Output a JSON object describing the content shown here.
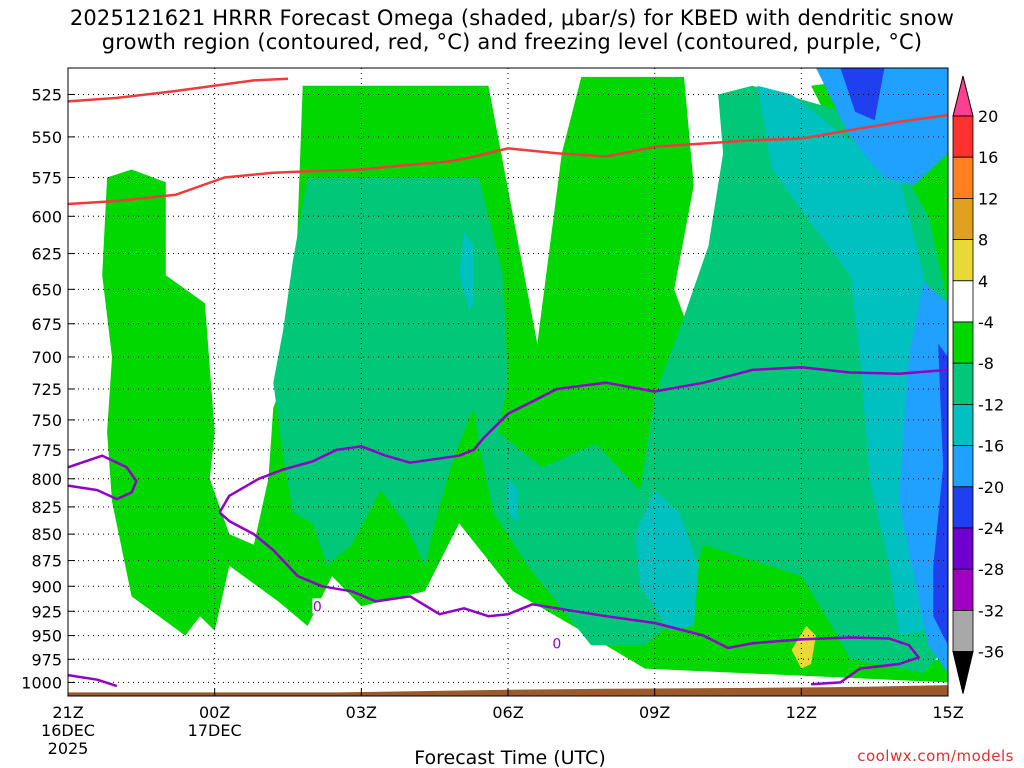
{
  "title": {
    "line1": "2025121621 HRRR Forecast Omega (shaded, μbar/s) for KBED with dendritic snow",
    "line2": "growth region (contoured, red, °C) and freezing level (contoured, purple, °C)"
  },
  "credit": "coolwx.com/models",
  "chart_data": {
    "type": "heatmap",
    "xlabel": "Forecast Time (UTC)",
    "x_ticks": [
      {
        "label": "21Z",
        "sub": [
          "16DEC",
          "2025"
        ],
        "hour": 0
      },
      {
        "label": "00Z",
        "sub": [
          "17DEC"
        ],
        "hour": 3
      },
      {
        "label": "03Z",
        "sub": [],
        "hour": 6
      },
      {
        "label": "06Z",
        "sub": [],
        "hour": 9
      },
      {
        "label": "09Z",
        "sub": [],
        "hour": 12
      },
      {
        "label": "12Z",
        "sub": [],
        "hour": 15
      },
      {
        "label": "15Z",
        "sub": [],
        "hour": 18
      }
    ],
    "xlim": [
      0,
      18
    ],
    "ylabel": "",
    "y_ticks": [
      525,
      550,
      575,
      600,
      625,
      650,
      675,
      700,
      725,
      750,
      775,
      800,
      825,
      850,
      875,
      900,
      925,
      950,
      975,
      1000
    ],
    "ylim_hpa": [
      510,
      1015
    ],
    "y_scale": "log-pressure",
    "grid": true,
    "colorbar": {
      "labels": [
        "20",
        "16",
        "12",
        "8",
        "4",
        "-4",
        "-8",
        "-12",
        "-16",
        "-20",
        "-24",
        "-28",
        "-32",
        "-36"
      ],
      "colors": [
        "#ff4090",
        "#ff3030",
        "#ff8020",
        "#e0a020",
        "#e8d838",
        "#ffffff",
        "#00d800",
        "#00c878",
        "#00c0c0",
        "#20a0ff",
        "#2040f0",
        "#7000d0",
        "#a000c0",
        "#a8a8a8",
        "#000000"
      ]
    },
    "omega_regions": [
      {
        "level": "-4 to -8",
        "color": "#00d800",
        "time_hpa": [
          [
            0.8,
            575
          ],
          [
            1.3,
            570
          ],
          [
            2.0,
            578
          ],
          [
            2.0,
            640
          ],
          [
            2.8,
            660
          ],
          [
            3.0,
            760
          ],
          [
            2.9,
            800
          ],
          [
            3.3,
            850
          ],
          [
            3.8,
            860
          ],
          [
            4.1,
            800
          ],
          [
            4.2,
            740
          ],
          [
            4.6,
            700
          ],
          [
            4.8,
            520
          ],
          [
            8.6,
            520
          ],
          [
            9.6,
            690
          ],
          [
            10.1,
            560
          ],
          [
            10.5,
            515
          ],
          [
            12.6,
            515
          ],
          [
            12.8,
            580
          ],
          [
            12.4,
            650
          ],
          [
            12.9,
            700
          ],
          [
            13.3,
            760
          ],
          [
            13.6,
            790
          ],
          [
            14.8,
            830
          ],
          [
            15.1,
            880
          ],
          [
            15.9,
            960
          ],
          [
            16.4,
            950
          ],
          [
            17.0,
            980
          ],
          [
            17.9,
            975
          ],
          [
            17.9,
            900
          ],
          [
            17.3,
            790
          ],
          [
            16.8,
            700
          ],
          [
            16.5,
            620
          ],
          [
            15.9,
            560
          ],
          [
            15.2,
            520
          ],
          [
            18.0,
            510
          ],
          [
            18.0,
            1000
          ],
          [
            11.8,
            985
          ],
          [
            10.5,
            945
          ],
          [
            9.1,
            905
          ],
          [
            8.0,
            840
          ],
          [
            7.3,
            905
          ],
          [
            6.0,
            920
          ],
          [
            5.4,
            890
          ],
          [
            4.9,
            940
          ],
          [
            4.3,
            915
          ],
          [
            3.3,
            880
          ],
          [
            3.0,
            945
          ],
          [
            2.7,
            930
          ],
          [
            2.4,
            950
          ],
          [
            1.3,
            910
          ],
          [
            0.9,
            820
          ],
          [
            0.8,
            760
          ],
          [
            0.9,
            700
          ],
          [
            0.7,
            640
          ]
        ]
      },
      {
        "level": "-8 to -12",
        "color": "#00c878",
        "time_hpa": [
          [
            4.9,
            575
          ],
          [
            8.4,
            575
          ],
          [
            8.9,
            640
          ],
          [
            9.0,
            720
          ],
          [
            8.8,
            760
          ],
          [
            9.7,
            790
          ],
          [
            10.8,
            770
          ],
          [
            11.7,
            810
          ],
          [
            12.0,
            730
          ],
          [
            12.5,
            680
          ],
          [
            13.1,
            620
          ],
          [
            13.4,
            560
          ],
          [
            13.3,
            525
          ],
          [
            14.0,
            520
          ],
          [
            16.5,
            540
          ],
          [
            17.6,
            600
          ],
          [
            18.0,
            660
          ],
          [
            18.0,
            960
          ],
          [
            17.5,
            990
          ],
          [
            16.0,
            975
          ],
          [
            15.5,
            930
          ],
          [
            15.0,
            890
          ],
          [
            13.0,
            860
          ],
          [
            12.5,
            930
          ],
          [
            11.8,
            960
          ],
          [
            10.7,
            960
          ],
          [
            9.9,
            910
          ],
          [
            9.4,
            880
          ],
          [
            8.7,
            830
          ],
          [
            8.4,
            770
          ],
          [
            8.3,
            740
          ],
          [
            7.9,
            780
          ],
          [
            7.5,
            840
          ],
          [
            7.3,
            880
          ],
          [
            6.9,
            840
          ],
          [
            6.4,
            810
          ],
          [
            5.8,
            860
          ],
          [
            5.3,
            880
          ],
          [
            5.0,
            840
          ],
          [
            4.6,
            830
          ],
          [
            4.4,
            780
          ],
          [
            4.2,
            720
          ],
          [
            4.4,
            680
          ],
          [
            4.6,
            630
          ]
        ]
      },
      {
        "level": "-12 to -16",
        "color": "#00c0c0",
        "time_hpa": [
          [
            14.1,
            520
          ],
          [
            14.8,
            525
          ],
          [
            15.9,
            550
          ],
          [
            17.0,
            575
          ],
          [
            17.5,
            640
          ],
          [
            17.9,
            720
          ],
          [
            17.9,
            940
          ],
          [
            17.0,
            950
          ],
          [
            16.8,
            880
          ],
          [
            16.4,
            800
          ],
          [
            16.2,
            700
          ],
          [
            16.0,
            640
          ],
          [
            15.1,
            600
          ],
          [
            14.4,
            570
          ]
        ]
      },
      {
        "level": "-12 to -16",
        "color": "#00c0c0",
        "time_hpa": [
          [
            8.1,
            610
          ],
          [
            8.3,
            620
          ],
          [
            8.3,
            660
          ],
          [
            8.2,
            665
          ],
          [
            8.0,
            640
          ]
        ]
      },
      {
        "level": "-12 to -16",
        "color": "#00c0c0",
        "time_hpa": [
          [
            12.0,
            810
          ],
          [
            12.5,
            830
          ],
          [
            12.9,
            880
          ],
          [
            12.8,
            940
          ],
          [
            12.3,
            945
          ],
          [
            11.7,
            900
          ],
          [
            11.6,
            850
          ]
        ]
      },
      {
        "level": "-12 to -16",
        "color": "#00c0c0",
        "time_hpa": [
          [
            9.0,
            800
          ],
          [
            9.2,
            810
          ],
          [
            9.2,
            840
          ],
          [
            9.0,
            830
          ]
        ]
      },
      {
        "level": "-16 to -20",
        "color": "#20a0ff",
        "time_hpa": [
          [
            15.3,
            510
          ],
          [
            18.0,
            510
          ],
          [
            18.0,
            560
          ],
          [
            17.3,
            580
          ],
          [
            16.7,
            575
          ],
          [
            16.0,
            550
          ]
        ]
      },
      {
        "level": "-16 to -20",
        "color": "#20a0ff",
        "time_hpa": [
          [
            17.5,
            645
          ],
          [
            18.0,
            660
          ],
          [
            18.0,
            990
          ],
          [
            17.6,
            960
          ],
          [
            17.0,
            820
          ],
          [
            17.2,
            700
          ]
        ]
      },
      {
        "level": "-20 to -24",
        "color": "#2040f0",
        "time_hpa": [
          [
            15.8,
            510
          ],
          [
            16.7,
            510
          ],
          [
            16.5,
            540
          ],
          [
            16.1,
            535
          ]
        ]
      },
      {
        "level": "-20 to -24",
        "color": "#2040f0",
        "time_hpa": [
          [
            17.8,
            690
          ],
          [
            18.0,
            700
          ],
          [
            18.0,
            960
          ],
          [
            17.7,
            930
          ],
          [
            17.7,
            880
          ],
          [
            17.9,
            790
          ]
        ]
      },
      {
        "level": "4 to 8",
        "color": "#e8d838",
        "time_hpa": [
          [
            15.1,
            940
          ],
          [
            15.3,
            950
          ],
          [
            15.2,
            980
          ],
          [
            15.0,
            985
          ],
          [
            14.8,
            965
          ]
        ]
      }
    ],
    "dgz_contours": {
      "color": "#ee3c3c",
      "lines": [
        {
          "time_hpa": [
            [
              0,
              529
            ],
            [
              1.0,
              527
            ],
            [
              2.2,
              523
            ],
            [
              3.8,
              517
            ],
            [
              4.5,
              516
            ]
          ]
        },
        {
          "time_hpa": [
            [
              0,
              592
            ],
            [
              1.0,
              590
            ],
            [
              2.2,
              586
            ],
            [
              3.2,
              575
            ],
            [
              4.2,
              572
            ],
            [
              5.0,
              571
            ],
            [
              6.0,
              570
            ],
            [
              7.0,
              567
            ],
            [
              7.8,
              565
            ],
            [
              8.3,
              562
            ],
            [
              9.0,
              557
            ],
            [
              10.0,
              560
            ],
            [
              11.0,
              562
            ],
            [
              12.0,
              556
            ],
            [
              13.0,
              554
            ],
            [
              14.0,
              552
            ],
            [
              15.0,
              551
            ],
            [
              16.0,
              546
            ],
            [
              17.0,
              541
            ],
            [
              18.0,
              537
            ]
          ]
        }
      ]
    },
    "freezing_contours": {
      "color": "#9000c8",
      "label": "0",
      "lines": [
        {
          "time_hpa": [
            [
              0,
              790
            ],
            [
              0.7,
              780
            ],
            [
              1.2,
              790
            ],
            [
              1.4,
              802
            ],
            [
              1.3,
              812
            ],
            [
              1.0,
              818
            ],
            [
              0.6,
              810
            ],
            [
              0,
              806
            ]
          ]
        },
        {
          "time_hpa": [
            [
              0,
              992
            ],
            [
              0.6,
              997
            ],
            [
              1.0,
              1004
            ]
          ]
        },
        {
          "time_hpa": [
            [
              3.1,
              830
            ],
            [
              3.3,
              815
            ],
            [
              3.9,
              800
            ],
            [
              4.4,
              792
            ],
            [
              5.0,
              785
            ],
            [
              5.5,
              775
            ],
            [
              6.0,
              772
            ],
            [
              6.5,
              780
            ],
            [
              7.0,
              786
            ],
            [
              8.0,
              780
            ],
            [
              8.3,
              775
            ],
            [
              8.5,
              765
            ],
            [
              9.0,
              745
            ],
            [
              9.5,
              735
            ],
            [
              10.0,
              725
            ],
            [
              11.0,
              720
            ],
            [
              12.0,
              727
            ],
            [
              13.0,
              720
            ],
            [
              14.0,
              710
            ],
            [
              15.0,
              708
            ],
            [
              16.0,
              712
            ],
            [
              17.0,
              713
            ],
            [
              18.0,
              710
            ]
          ]
        },
        {
          "time_hpa": [
            [
              3.1,
              830
            ],
            [
              3.3,
              838
            ],
            [
              3.8,
              850
            ],
            [
              4.2,
              865
            ],
            [
              4.7,
              890
            ],
            [
              5.2,
              900
            ],
            [
              5.8,
              905
            ],
            [
              6.3,
              915
            ],
            [
              7.0,
              910
            ],
            [
              7.6,
              928
            ],
            [
              8.1,
              922
            ],
            [
              8.6,
              930
            ],
            [
              9.0,
              928
            ],
            [
              9.5,
              918
            ],
            [
              10.0,
              922
            ],
            [
              11.0,
              930
            ],
            [
              12.0,
              937
            ],
            [
              13.0,
              950
            ],
            [
              13.5,
              963
            ],
            [
              14.0,
              958
            ],
            [
              15.0,
              954
            ],
            [
              16.0,
              952
            ],
            [
              16.8,
              953
            ],
            [
              17.2,
              960
            ],
            [
              17.4,
              973
            ],
            [
              17.0,
              980
            ],
            [
              16.2,
              985
            ],
            [
              15.8,
              1000
            ],
            [
              15.2,
              1002
            ]
          ]
        }
      ]
    },
    "terrain": {
      "color": "#9a5a2c",
      "time_hpa": [
        [
          0,
          1011
        ],
        [
          5.5,
          1011
        ],
        [
          9.0,
          1008
        ],
        [
          11.0,
          1007
        ],
        [
          14.0,
          1006
        ],
        [
          16.0,
          1005
        ],
        [
          18.0,
          1003
        ]
      ]
    }
  }
}
